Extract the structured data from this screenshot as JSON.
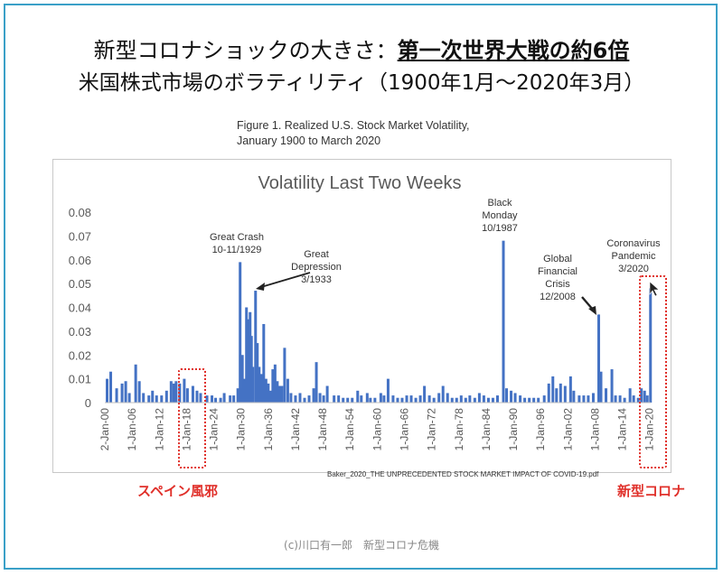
{
  "header": {
    "line1_prefix": "新型コロナショックの大きさ：",
    "line1_emphasis": "第一次世界大戦の約6倍",
    "line2": "米国株式市場のボラティリティ（1900年1月～2020年3月）"
  },
  "figure_caption": {
    "line1": "Figure 1. Realized U.S. Stock Market Volatility,",
    "line2": "January 1900 to March 2020"
  },
  "chart_data": {
    "type": "bar",
    "title": "Volatility Last Two Weeks",
    "ylim": [
      0,
      0.08
    ],
    "yticks": [
      "0.08",
      "0.07",
      "0.06",
      "0.05",
      "0.04",
      "0.03",
      "0.02",
      "0.01",
      "0"
    ],
    "xlim": [
      1900,
      2020.25
    ],
    "xtick_labels": [
      "2-Jan-00",
      "1-Jan-06",
      "1-Jan-12",
      "1-Jan-18",
      "1-Jan-24",
      "1-Jan-30",
      "1-Jan-36",
      "1-Jan-42",
      "1-Jan-48",
      "1-Jan-54",
      "1-Jan-60",
      "1-Jan-66",
      "1-Jan-72",
      "1-Jan-78",
      "1-Jan-84",
      "1-Jan-90",
      "1-Jan-96",
      "1-Jan-02",
      "1-Jan-08",
      "1-Jan-14",
      "1-Jan-20"
    ],
    "xtick_years": [
      1900,
      1906,
      1912,
      1918,
      1924,
      1930,
      1936,
      1942,
      1948,
      1954,
      1960,
      1966,
      1972,
      1978,
      1984,
      1990,
      1996,
      2002,
      2008,
      2014,
      2020
    ],
    "bar_color": "#4472c4",
    "points": [
      [
        1900.5,
        0.01
      ],
      [
        1901.3,
        0.013
      ],
      [
        1902.6,
        0.006
      ],
      [
        1903.8,
        0.008
      ],
      [
        1904.6,
        0.009
      ],
      [
        1905.4,
        0.004
      ],
      [
        1906.8,
        0.016
      ],
      [
        1907.6,
        0.009
      ],
      [
        1908.5,
        0.004
      ],
      [
        1909.7,
        0.003
      ],
      [
        1910.5,
        0.005
      ],
      [
        1911.4,
        0.003
      ],
      [
        1912.5,
        0.003
      ],
      [
        1913.6,
        0.005
      ],
      [
        1914.6,
        0.009
      ],
      [
        1915.2,
        0.008
      ],
      [
        1915.7,
        0.009
      ],
      [
        1916.5,
        0.008
      ],
      [
        1917.5,
        0.01
      ],
      [
        1918.2,
        0.006
      ],
      [
        1919.4,
        0.007
      ],
      [
        1920.3,
        0.005
      ],
      [
        1921.1,
        0.004
      ],
      [
        1922.5,
        0.003
      ],
      [
        1923.6,
        0.003
      ],
      [
        1924.4,
        0.002
      ],
      [
        1925.5,
        0.002
      ],
      [
        1926.3,
        0.004
      ],
      [
        1927.6,
        0.003
      ],
      [
        1928.4,
        0.003
      ],
      [
        1929.3,
        0.006
      ],
      [
        1929.8,
        0.059
      ],
      [
        1930.3,
        0.02
      ],
      [
        1930.8,
        0.01
      ],
      [
        1931.2,
        0.04
      ],
      [
        1931.6,
        0.035
      ],
      [
        1932.0,
        0.038
      ],
      [
        1932.3,
        0.028
      ],
      [
        1932.6,
        0.015
      ],
      [
        1933.2,
        0.047
      ],
      [
        1933.6,
        0.025
      ],
      [
        1934.0,
        0.015
      ],
      [
        1934.5,
        0.012
      ],
      [
        1935.0,
        0.033
      ],
      [
        1935.5,
        0.01
      ],
      [
        1936.0,
        0.008
      ],
      [
        1936.5,
        0.005
      ],
      [
        1937.0,
        0.014
      ],
      [
        1937.5,
        0.016
      ],
      [
        1938.0,
        0.009
      ],
      [
        1938.5,
        0.007
      ],
      [
        1939.0,
        0.007
      ],
      [
        1939.6,
        0.023
      ],
      [
        1940.3,
        0.01
      ],
      [
        1941.0,
        0.004
      ],
      [
        1942.0,
        0.003
      ],
      [
        1943.0,
        0.004
      ],
      [
        1944.0,
        0.002
      ],
      [
        1945.0,
        0.003
      ],
      [
        1946.0,
        0.006
      ],
      [
        1946.6,
        0.017
      ],
      [
        1947.4,
        0.004
      ],
      [
        1948.2,
        0.003
      ],
      [
        1949.0,
        0.007
      ],
      [
        1950.5,
        0.003
      ],
      [
        1951.5,
        0.003
      ],
      [
        1952.5,
        0.002
      ],
      [
        1953.5,
        0.002
      ],
      [
        1954.5,
        0.002
      ],
      [
        1955.7,
        0.005
      ],
      [
        1956.5,
        0.003
      ],
      [
        1957.8,
        0.004
      ],
      [
        1958.5,
        0.002
      ],
      [
        1959.5,
        0.002
      ],
      [
        1960.8,
        0.004
      ],
      [
        1961.5,
        0.003
      ],
      [
        1962.4,
        0.01
      ],
      [
        1963.5,
        0.003
      ],
      [
        1964.5,
        0.002
      ],
      [
        1965.5,
        0.002
      ],
      [
        1966.5,
        0.003
      ],
      [
        1967.5,
        0.003
      ],
      [
        1968.5,
        0.002
      ],
      [
        1969.5,
        0.003
      ],
      [
        1970.4,
        0.007
      ],
      [
        1971.5,
        0.003
      ],
      [
        1972.5,
        0.002
      ],
      [
        1973.6,
        0.004
      ],
      [
        1974.5,
        0.007
      ],
      [
        1975.5,
        0.004
      ],
      [
        1976.5,
        0.002
      ],
      [
        1977.5,
        0.002
      ],
      [
        1978.5,
        0.003
      ],
      [
        1979.5,
        0.002
      ],
      [
        1980.4,
        0.003
      ],
      [
        1981.5,
        0.002
      ],
      [
        1982.5,
        0.004
      ],
      [
        1983.5,
        0.003
      ],
      [
        1984.5,
        0.002
      ],
      [
        1985.5,
        0.002
      ],
      [
        1986.5,
        0.003
      ],
      [
        1987.8,
        0.068
      ],
      [
        1988.5,
        0.006
      ],
      [
        1989.5,
        0.005
      ],
      [
        1990.4,
        0.004
      ],
      [
        1991.5,
        0.003
      ],
      [
        1992.5,
        0.002
      ],
      [
        1993.5,
        0.002
      ],
      [
        1994.5,
        0.002
      ],
      [
        1995.5,
        0.002
      ],
      [
        1996.8,
        0.003
      ],
      [
        1997.8,
        0.008
      ],
      [
        1998.7,
        0.011
      ],
      [
        1999.5,
        0.006
      ],
      [
        2000.4,
        0.008
      ],
      [
        2001.4,
        0.007
      ],
      [
        2002.6,
        0.011
      ],
      [
        2003.3,
        0.005
      ],
      [
        2004.5,
        0.003
      ],
      [
        2005.5,
        0.003
      ],
      [
        2006.5,
        0.003
      ],
      [
        2007.6,
        0.004
      ],
      [
        2008.8,
        0.037
      ],
      [
        2009.3,
        0.013
      ],
      [
        2010.4,
        0.006
      ],
      [
        2011.7,
        0.014
      ],
      [
        2012.5,
        0.003
      ],
      [
        2013.5,
        0.003
      ],
      [
        2014.5,
        0.002
      ],
      [
        2015.7,
        0.006
      ],
      [
        2016.5,
        0.003
      ],
      [
        2017.5,
        0.002
      ],
      [
        2018.2,
        0.006
      ],
      [
        2018.9,
        0.005
      ],
      [
        2019.5,
        0.003
      ],
      [
        2020.2,
        0.048
      ]
    ],
    "annotations": [
      {
        "lines": [
          "Great Crash",
          "10-11/1929"
        ]
      },
      {
        "lines": [
          "Great",
          "Depression",
          "3/1933"
        ]
      },
      {
        "lines": [
          "Black",
          "Monday",
          "10/1987"
        ]
      },
      {
        "lines": [
          "Global",
          "Financial",
          "Crisis",
          "12/2008"
        ]
      },
      {
        "lines": [
          "Coronavirus",
          "Pandemic",
          "3/2020"
        ]
      }
    ],
    "source_note": "Baker_2020_THE UNPRECEDENTED STOCK MARKET IMPACT OF COVID-19.pdf",
    "highlight_color": "#e0302a"
  },
  "callouts": {
    "spanish_flu": "スペイン風邪",
    "new_corona": "新型コロナ"
  },
  "credit": "(c)川口有一郎　新型コロナ危機"
}
